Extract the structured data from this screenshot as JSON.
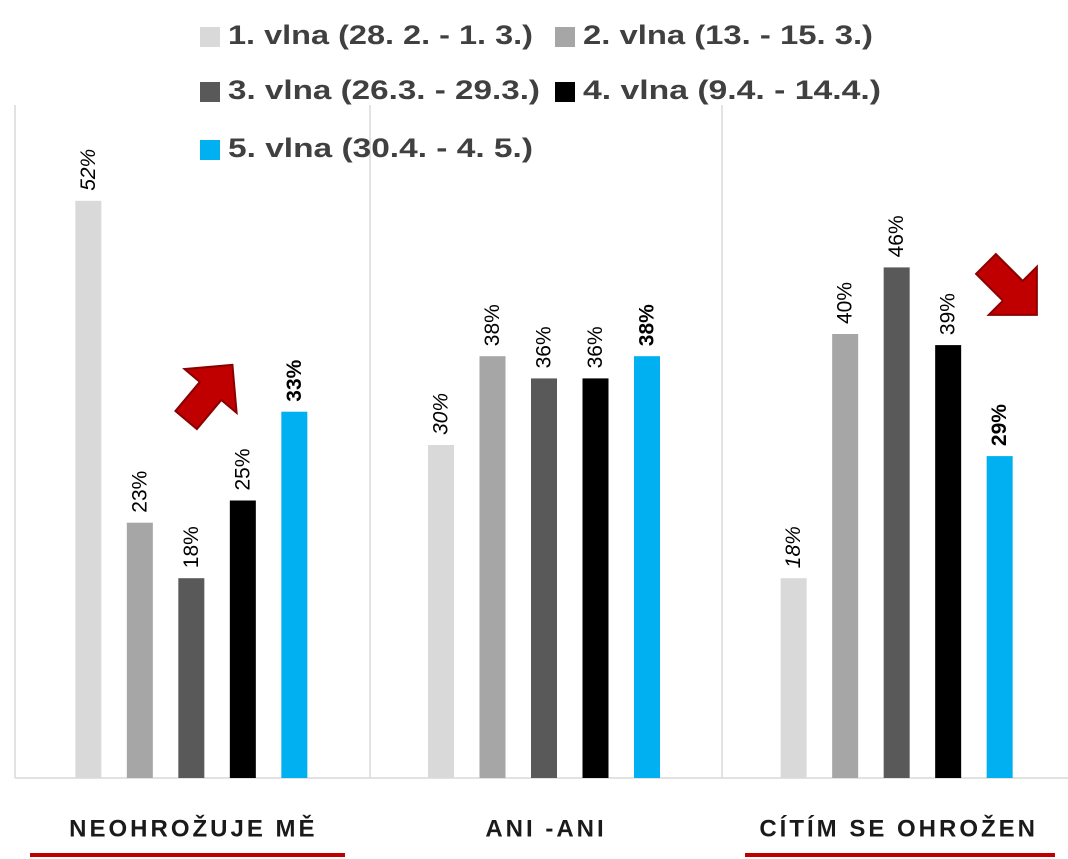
{
  "chart_data": {
    "type": "bar",
    "categories": [
      "NEOHROŽUJE MĚ",
      "ANI -ANI",
      "CÍTÍM SE OHROŽEN"
    ],
    "series": [
      {
        "name": "1. vlna (28. 2. - 1. 3.)",
        "color": "#d9d9d9",
        "values": [
          52,
          30,
          18
        ],
        "value_labels": [
          "52%",
          "30%",
          "18%"
        ]
      },
      {
        "name": "2. vlna (13. - 15. 3.)",
        "color": "#a6a6a6",
        "values": [
          23,
          38,
          40
        ],
        "value_labels": [
          "23%",
          "38%",
          "40%"
        ]
      },
      {
        "name": "3. vlna (26.3. - 29.3.)",
        "color": "#595959",
        "values": [
          18,
          36,
          46
        ],
        "value_labels": [
          "18%",
          "36%",
          "46%"
        ]
      },
      {
        "name": "4. vlna (9.4. - 14.4.)",
        "color": "#000000",
        "values": [
          25,
          36,
          39
        ],
        "value_labels": [
          "25%",
          "36%",
          "39%"
        ]
      },
      {
        "name": "5. vlna (30.4. - 4. 5.)",
        "color": "#00b0f0",
        "values": [
          33,
          38,
          29
        ],
        "value_labels": [
          "33%",
          "38%",
          "29%"
        ]
      }
    ],
    "ylim": [
      0,
      60
    ],
    "legend": "top"
  }
}
